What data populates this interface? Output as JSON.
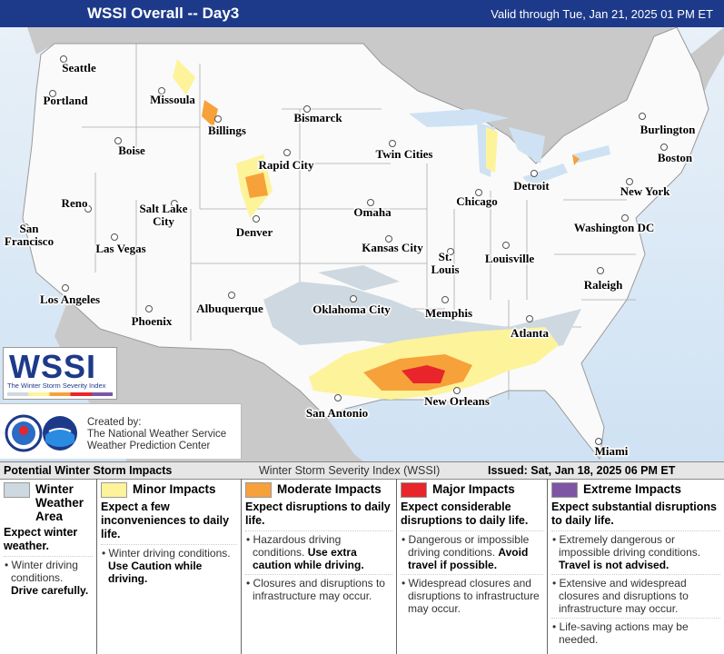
{
  "header": {
    "title": "WSSI Overall -- Day3",
    "valid": "Valid through Tue, Jan 21, 2025 01 PM ET"
  },
  "map": {
    "cities": [
      "Seattle",
      "Portland",
      "Missoula",
      "Bismarck",
      "Boise",
      "Billings",
      "Rapid City",
      "Twin Cities",
      "Burlington",
      "Boston",
      "Reno",
      "Salt Lake City",
      "Denver",
      "Omaha",
      "Chicago",
      "Detroit",
      "New York",
      "San Francisco",
      "Las Vegas",
      "Kansas City",
      "St. Louis",
      "Louisville",
      "Washington DC",
      "Los Angeles",
      "Phoenix",
      "Albuquerque",
      "Oklahoma City",
      "Memphis",
      "Raleigh",
      "Atlanta",
      "San Antonio",
      "New Orleans",
      "Miami"
    ]
  },
  "logo": {
    "name": "WSSI",
    "subtitle": "The Winter Storm Severity Index"
  },
  "credit": {
    "lines": [
      "Created by:",
      "The National Weather Service",
      "Weather Prediction Center"
    ]
  },
  "legend": {
    "title": "Potential Winter Storm Impacts",
    "index_name": "Winter Storm Severity Index (WSSI)",
    "issued": "Issued: Sat, Jan 18, 2025 06 PM ET",
    "categories": [
      {
        "title": "Winter Weather Area",
        "summary": "Expect winter weather.",
        "bullets": [
          {
            "text": "Winter driving conditions.",
            "emphasis": "Drive carefully."
          }
        ]
      },
      {
        "title": "Minor Impacts",
        "summary": "Expect a few inconveniences to daily life.",
        "bullets": [
          {
            "text": "Winter driving conditions.",
            "emphasis": "Use Caution while driving."
          }
        ]
      },
      {
        "title": "Moderate Impacts",
        "summary": "Expect disruptions to daily life.",
        "bullets": [
          {
            "text": "Hazardous driving conditions.",
            "emphasis": "Use extra caution while driving."
          },
          {
            "text": "Closures and disruptions to infrastructure may occur."
          }
        ]
      },
      {
        "title": "Major Impacts",
        "summary": "Expect considerable disruptions to daily life.",
        "bullets": [
          {
            "text": "Dangerous or impossible driving conditions.",
            "emphasis": "Avoid travel if possible."
          },
          {
            "text": "Widespread closures and disruptions to infrastructure may occur."
          }
        ]
      },
      {
        "title": "Extreme Impacts",
        "summary": "Expect substantial disruptions to daily life.",
        "bullets": [
          {
            "text": "Extremely dangerous or impossible driving conditions.",
            "emphasis": "Travel is not advised."
          },
          {
            "text": "Extensive and widespread closures and disruptions to infrastructure may occur."
          },
          {
            "text": "Life-saving actions may be needed."
          }
        ]
      }
    ]
  }
}
